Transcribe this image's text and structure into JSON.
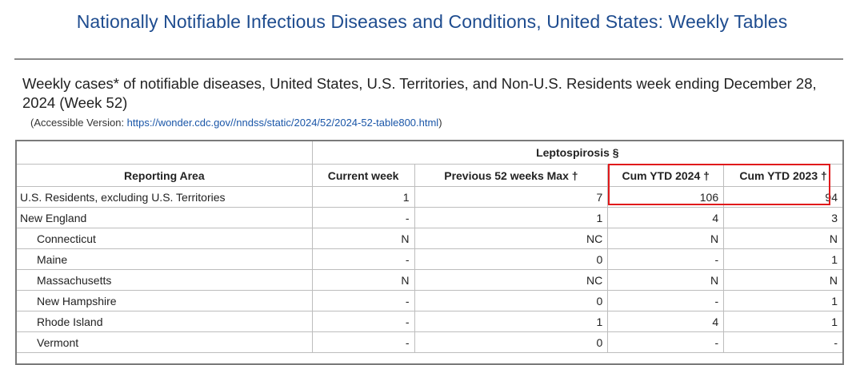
{
  "page": {
    "title": "Nationally Notifiable Infectious Diseases and Conditions, United States: Weekly Tables",
    "subtitle": "Weekly cases* of notifiable diseases, United States, U.S. Territories, and Non-U.S. Residents week ending December 28, 2024 (Week 52)",
    "accessible_prefix": "(Accessible Version: ",
    "accessible_url": "https://wonder.cdc.gov//nndss/static/2024/52/2024-52-table800.html",
    "accessible_suffix": ")"
  },
  "table": {
    "group_header": "Leptospirosis §",
    "columns": {
      "area": "Reporting Area",
      "current": "Current week",
      "prev_max": "Previous 52 weeks Max †",
      "cum2024": "Cum YTD 2024 †",
      "cum2023": "Cum YTD 2023 †"
    },
    "rows": [
      {
        "area": "U.S. Residents, excluding U.S. Territories",
        "current": "1",
        "prev_max": "7",
        "cum2024": "106",
        "cum2023": "94"
      },
      {
        "area": "New England",
        "current": "-",
        "prev_max": "1",
        "cum2024": "4",
        "cum2023": "3"
      },
      {
        "area": "Connecticut",
        "current": "N",
        "prev_max": "NC",
        "cum2024": "N",
        "cum2023": "N"
      },
      {
        "area": "Maine",
        "current": "-",
        "prev_max": "0",
        "cum2024": "-",
        "cum2023": "1"
      },
      {
        "area": "Massachusetts",
        "current": "N",
        "prev_max": "NC",
        "cum2024": "N",
        "cum2023": "N"
      },
      {
        "area": "New Hampshire",
        "current": "-",
        "prev_max": "0",
        "cum2024": "-",
        "cum2023": "1"
      },
      {
        "area": "Rhode Island",
        "current": "-",
        "prev_max": "1",
        "cum2024": "4",
        "cum2023": "1"
      },
      {
        "area": "Vermont",
        "current": "-",
        "prev_max": "0",
        "cum2024": "-",
        "cum2023": "-"
      }
    ]
  },
  "annotation": {
    "highlight_color": "#e0191b"
  }
}
